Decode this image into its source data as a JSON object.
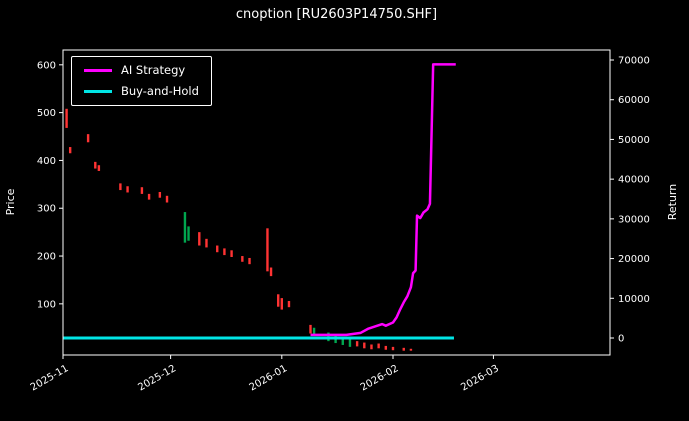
{
  "colors": {
    "background": "#000000",
    "text": "#ffffff",
    "axis": "#ffffff",
    "up": "#00a64f",
    "down": "#ff3333",
    "ai_strategy": "#ff00ff",
    "buy_and_hold": "#00e5e5"
  },
  "chart_data": {
    "type": "candlestick+line",
    "title": "cnoption [RU2603P14750.SHF]",
    "left_axis": {
      "label": "Price",
      "ticks": [
        100,
        200,
        300,
        400,
        500,
        600
      ],
      "range": [
        -7,
        631
      ]
    },
    "right_axis": {
      "label": "Return",
      "ticks": [
        0,
        10000,
        20000,
        30000,
        40000,
        50000,
        60000,
        70000
      ],
      "range": [
        -4280,
        72520
      ]
    },
    "x_axis": {
      "unit": "days since 2025-11-01",
      "range": [
        0,
        152.5
      ],
      "ticks": [
        {
          "day": 0,
          "label": "2025-11"
        },
        {
          "day": 30,
          "label": "2025-12"
        },
        {
          "day": 61,
          "label": "2026-01"
        },
        {
          "day": 92,
          "label": "2026-02"
        },
        {
          "day": 120,
          "label": "2026-03"
        }
      ]
    },
    "legend": [
      {
        "label": "AI Strategy",
        "color": "#ff00ff"
      },
      {
        "label": "Buy-and-Hold",
        "color": "#00e5e5"
      }
    ],
    "series": [
      {
        "name": "Buy-and-Hold",
        "axis": "right",
        "color": "#00e5e5",
        "width": 3,
        "points": [
          [
            0,
            0
          ],
          [
            109,
            0
          ]
        ]
      },
      {
        "name": "AI Strategy",
        "axis": "right",
        "color": "#ff00ff",
        "width": 2.5,
        "points": [
          [
            69,
            800
          ],
          [
            79,
            800
          ],
          [
            83,
            1300
          ],
          [
            85,
            2300
          ],
          [
            87,
            2900
          ],
          [
            89,
            3500
          ],
          [
            90,
            3100
          ],
          [
            92,
            3900
          ],
          [
            93,
            5200
          ],
          [
            94,
            7200
          ],
          [
            95,
            9000
          ],
          [
            96,
            10500
          ],
          [
            97,
            12800
          ],
          [
            97.6,
            16300
          ],
          [
            98.3,
            17000
          ],
          [
            98.7,
            30800
          ],
          [
            99.6,
            30200
          ],
          [
            100.5,
            31600
          ],
          [
            101.6,
            32400
          ],
          [
            102.3,
            33800
          ],
          [
            103.2,
            68900
          ],
          [
            109.5,
            68900
          ]
        ]
      }
    ],
    "candles_format": [
      "day",
      "low",
      "high",
      "direction"
    ],
    "candles": [
      [
        1,
        468,
        508,
        "down"
      ],
      [
        2,
        415,
        428,
        "down"
      ],
      [
        7,
        438,
        455,
        "down"
      ],
      [
        9,
        383,
        397,
        "down"
      ],
      [
        10,
        378,
        390,
        "down"
      ],
      [
        16,
        338,
        352,
        "down"
      ],
      [
        18,
        333,
        346,
        "down"
      ],
      [
        22,
        330,
        344,
        "down"
      ],
      [
        24,
        318,
        330,
        "down"
      ],
      [
        27,
        322,
        334,
        "down"
      ],
      [
        29,
        312,
        326,
        "down"
      ],
      [
        34,
        228,
        292,
        "up"
      ],
      [
        35,
        232,
        262,
        "up"
      ],
      [
        38,
        222,
        250,
        "down"
      ],
      [
        40,
        218,
        236,
        "down"
      ],
      [
        43,
        208,
        222,
        "down"
      ],
      [
        45,
        202,
        216,
        "down"
      ],
      [
        47,
        198,
        212,
        "down"
      ],
      [
        50,
        188,
        200,
        "down"
      ],
      [
        52,
        183,
        196,
        "down"
      ],
      [
        57,
        168,
        258,
        "down"
      ],
      [
        58,
        158,
        176,
        "down"
      ],
      [
        60,
        94,
        120,
        "down"
      ],
      [
        61,
        88,
        112,
        "down"
      ],
      [
        63,
        93,
        106,
        "down"
      ],
      [
        69,
        38,
        56,
        "down"
      ],
      [
        70,
        36,
        50,
        "up"
      ],
      [
        74,
        22,
        40,
        "up"
      ],
      [
        76,
        18,
        34,
        "up"
      ],
      [
        78,
        14,
        30,
        "up"
      ],
      [
        80,
        10,
        26,
        "up"
      ],
      [
        82,
        11,
        22,
        "down"
      ],
      [
        84,
        7,
        19,
        "down"
      ],
      [
        86,
        5,
        15,
        "down"
      ],
      [
        88,
        7,
        17,
        "down"
      ],
      [
        90,
        4,
        12,
        "down"
      ],
      [
        92,
        3,
        10,
        "down"
      ],
      [
        95,
        2,
        8,
        "down"
      ],
      [
        97,
        2,
        6,
        "down"
      ]
    ],
    "layout_hints": {
      "grid": false,
      "legend_position": "upper-left",
      "background": "black",
      "x_tick_rotation": 30
    }
  }
}
